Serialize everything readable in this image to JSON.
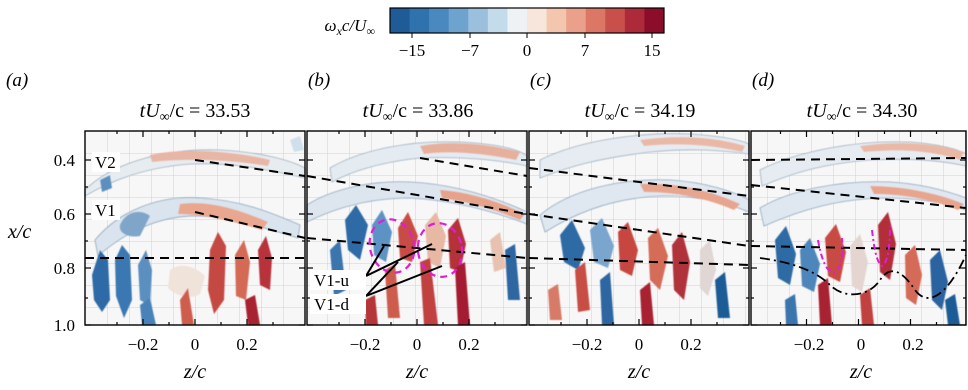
{
  "colorbar": {
    "label_main": "ω",
    "label_sub": "x",
    "label_rest": "c/U",
    "label_inf": "∞",
    "ticks": [
      "−15",
      "−7",
      "0",
      "7",
      "15"
    ],
    "colors": [
      "#1f5b96",
      "#2f72ad",
      "#4a89c0",
      "#6fa3cf",
      "#9ac0de",
      "#c4dbec",
      "#eef2f5",
      "#f8e6dc",
      "#f4c6ae",
      "#eaa08a",
      "#dc7765",
      "#c84f4a",
      "#ad2a3a",
      "#8b0d2a"
    ]
  },
  "panels": [
    {
      "letter": "(a)",
      "title": "tU∞/c = 33.53",
      "title_t": "tU",
      "title_inf": "∞",
      "title_rest": "/c = 33.53"
    },
    {
      "letter": "(b)",
      "title": "tU∞/c = 33.86",
      "title_t": "tU",
      "title_inf": "∞",
      "title_rest": "/c = 33.86"
    },
    {
      "letter": "(c)",
      "title": "tU∞/c = 34.19",
      "title_t": "tU",
      "title_inf": "∞",
      "title_rest": "/c = 34.19"
    },
    {
      "letter": "(d)",
      "title": "tU∞/c = 34.30",
      "title_t": "tU",
      "title_inf": "∞",
      "title_rest": "/c = 34.30"
    }
  ],
  "y_axis": {
    "label": "x/c",
    "ticks": [
      "0.4",
      "0.6",
      "0.8",
      "1.0"
    ]
  },
  "x_axis": {
    "label": "z/c",
    "ticks": [
      "−0.2",
      "0",
      "0.2"
    ]
  },
  "annotations": {
    "v2": "V2",
    "v1": "V1",
    "v1u": "V1-u",
    "v1d": "V1-d"
  }
}
